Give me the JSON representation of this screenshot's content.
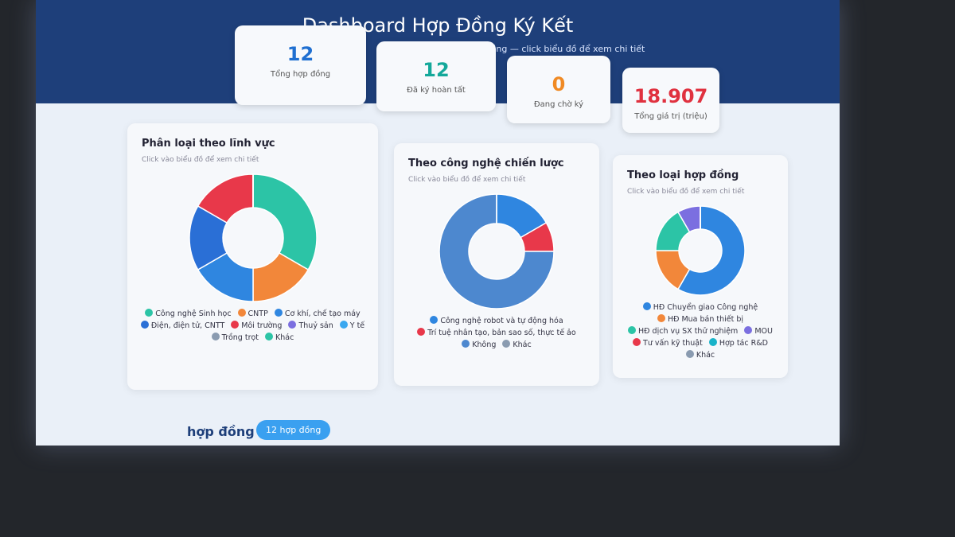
{
  "header": {
    "title": "Dashboard Hợp Đồng Ký Kết",
    "subtitle": "Tổng hợp dữ liệu hợp đồng — click biểu đồ để xem chi tiết"
  },
  "stats": [
    {
      "value": 12,
      "label": "Tổng hợp đồng",
      "color": "#1f6fd1"
    },
    {
      "value": 12,
      "label": "Đã ký hoàn tất",
      "color": "#14a89a"
    },
    {
      "value": 0,
      "label": "Đang chờ ký",
      "color": "#f08a24"
    },
    {
      "value": "18.907",
      "label": "Tổng giá trị (triệu)",
      "color": "#e0313f"
    }
  ],
  "chart_data": [
    {
      "type": "pie",
      "donut": true,
      "title": "Phân loại theo lĩnh vực",
      "subtitle": "Click vào biểu đồ để xem chi tiết",
      "categories": [
        "Công nghệ Sinh học",
        "CNTP",
        "Cơ khí, chế tạo máy",
        "Điện, điện tử, CNTT",
        "Môi trường",
        "Thuỷ sản",
        "Y tế",
        "Trồng trọt",
        "Khác"
      ],
      "values": [
        4,
        2,
        2,
        2,
        2,
        0,
        0,
        0,
        0
      ],
      "colors": [
        "#2cc4a6",
        "#f2873a",
        "#2f86e0",
        "#2a6fd6",
        "#e8384a",
        "#7b6fe0",
        "#3aa8f0",
        "#8a9bb0",
        "#2cc4a6"
      ]
    },
    {
      "type": "pie",
      "donut": true,
      "title": "Theo công nghệ chiến lược",
      "subtitle": "Click vào biểu đồ để xem chi tiết",
      "categories": [
        "Công nghệ robot và tự động hóa",
        "Trí tuệ nhân tạo, bản sao số, thực tế ảo",
        "Không",
        "Khác"
      ],
      "values": [
        2,
        1,
        9,
        0
      ],
      "colors": [
        "#2f86e0",
        "#e8384a",
        "#4d88cf",
        "#8a9bb0"
      ]
    },
    {
      "type": "pie",
      "donut": true,
      "title": "Theo loại hợp đồng",
      "subtitle": "Click vào biểu đồ để xem chi tiết",
      "categories": [
        "HĐ Chuyển giao Công nghệ",
        "HĐ Mua bán thiết bị",
        "HĐ dịch vụ SX thử nghiệm",
        "MOU",
        "Tư vấn kỹ thuật",
        "Hợp tác R&D",
        "Khác"
      ],
      "values": [
        7,
        2,
        2,
        1,
        0,
        0,
        0
      ],
      "colors": [
        "#2f86e0",
        "#f2873a",
        "#2cc4a6",
        "#7b6fe0",
        "#e8384a",
        "#19b3c9",
        "#8a9bb0"
      ]
    }
  ],
  "footer": {
    "section": "hợp đồng",
    "badge": "12 hợp đồng"
  }
}
